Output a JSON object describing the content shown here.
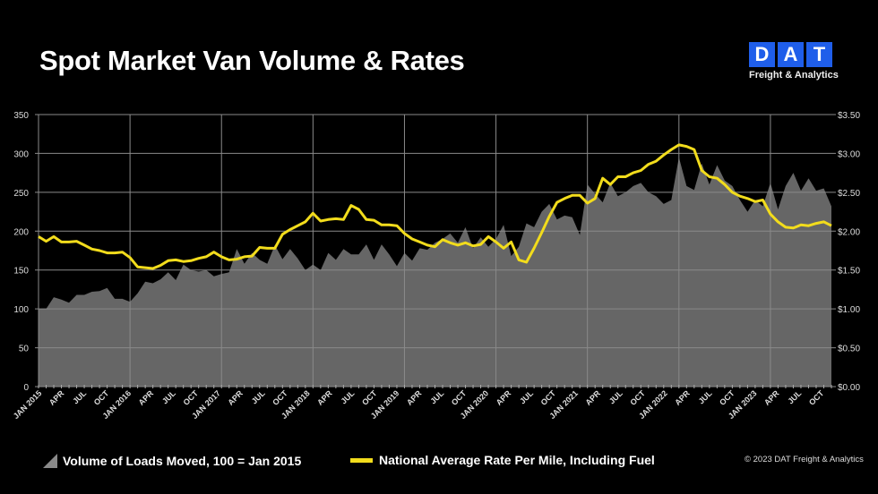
{
  "header": {
    "title": "Spot Market Van Volume & Rates",
    "logo_letters": [
      "D",
      "A",
      "T"
    ],
    "logo_subtitle": "Freight & Analytics"
  },
  "footer": {
    "copyright": "© 2023 DAT Freight & Analytics"
  },
  "colors": {
    "volume_fill": "#666666",
    "rate_line": "#f2dc1c",
    "logo_blue": "#1f5eea",
    "background": "#000000"
  },
  "chart_data": {
    "type": "area+line",
    "title": "Spot Market Van Volume & Rates",
    "grid": true,
    "legend_placement": "bottom",
    "x_tick_labels": [
      "JAN 2015",
      "APR",
      "JUL",
      "OCT",
      "JAN 2016",
      "APR",
      "JUL",
      "OCT",
      "JAN 2017",
      "APR",
      "JUL",
      "OCT",
      "JAN 2018",
      "APR",
      "JUL",
      "OCT",
      "JAN 2019",
      "APR",
      "JUL",
      "OCT",
      "JAN 2020",
      "APR",
      "JUL",
      "OCT",
      "JAN 2021",
      "APR",
      "JUL",
      "OCT",
      "JAN 2022",
      "APR",
      "JUL",
      "OCT",
      "JAN 2023",
      "APR",
      "JUL",
      "OCT"
    ],
    "y_left": {
      "ylim": [
        0,
        350
      ],
      "ticks": [
        "0",
        "50",
        "100",
        "150",
        "200",
        "250",
        "300",
        "350"
      ]
    },
    "y_right": {
      "ylim": [
        0,
        3.5
      ],
      "ticks": [
        "$0.00",
        "$0.50",
        "$1.00",
        "$1.50",
        "$2.00",
        "$2.50",
        "$3.00",
        "$3.50"
      ]
    },
    "series": [
      {
        "name": "Volume of Loads Moved, 100 = Jan 2015",
        "type": "area",
        "axis": "left",
        "values": [
          100,
          100,
          115,
          112,
          108,
          118,
          118,
          122,
          123,
          127,
          113,
          113,
          109,
          120,
          135,
          133,
          138,
          147,
          137,
          157,
          150,
          148,
          150,
          142,
          145,
          147,
          177,
          158,
          172,
          163,
          158,
          182,
          164,
          177,
          165,
          150,
          157,
          150,
          172,
          163,
          177,
          170,
          170,
          183,
          163,
          183,
          170,
          155,
          172,
          162,
          178,
          176,
          185,
          190,
          197,
          185,
          205,
          178,
          192,
          180,
          190,
          208,
          168,
          180,
          210,
          205,
          225,
          235,
          215,
          220,
          218,
          195,
          260,
          248,
          237,
          262,
          245,
          250,
          258,
          262,
          250,
          245,
          235,
          240,
          295,
          258,
          253,
          287,
          260,
          285,
          265,
          258,
          240,
          225,
          240,
          232,
          262,
          228,
          258,
          275,
          252,
          268,
          252,
          255,
          232
        ]
      },
      {
        "name": "National Average Rate Per Mile, Including Fuel",
        "type": "line",
        "axis": "right",
        "values": [
          1.93,
          1.87,
          1.93,
          1.86,
          1.86,
          1.87,
          1.82,
          1.77,
          1.75,
          1.72,
          1.72,
          1.73,
          1.66,
          1.54,
          1.53,
          1.52,
          1.56,
          1.62,
          1.63,
          1.61,
          1.62,
          1.65,
          1.67,
          1.73,
          1.67,
          1.63,
          1.64,
          1.67,
          1.68,
          1.79,
          1.78,
          1.78,
          1.96,
          2.02,
          2.07,
          2.12,
          2.23,
          2.13,
          2.15,
          2.16,
          2.15,
          2.33,
          2.28,
          2.15,
          2.14,
          2.08,
          2.08,
          2.07,
          1.97,
          1.9,
          1.86,
          1.82,
          1.8,
          1.89,
          1.85,
          1.82,
          1.85,
          1.81,
          1.83,
          1.93,
          1.86,
          1.78,
          1.86,
          1.63,
          1.6,
          1.78,
          1.98,
          2.19,
          2.37,
          2.42,
          2.46,
          2.46,
          2.36,
          2.42,
          2.68,
          2.6,
          2.7,
          2.7,
          2.75,
          2.78,
          2.86,
          2.9,
          2.98,
          3.05,
          3.11,
          3.09,
          3.05,
          2.78,
          2.7,
          2.68,
          2.6,
          2.5,
          2.45,
          2.42,
          2.38,
          2.4,
          2.22,
          2.12,
          2.05,
          2.04,
          2.08,
          2.07,
          2.1,
          2.12,
          2.07
        ]
      }
    ]
  }
}
